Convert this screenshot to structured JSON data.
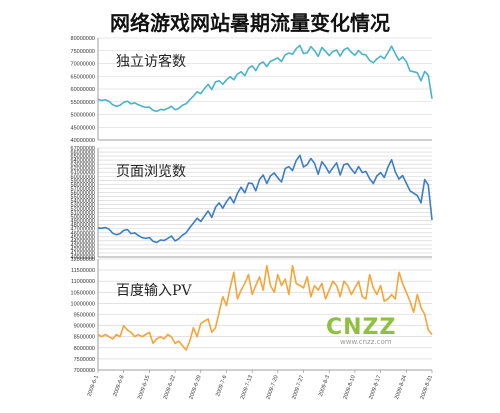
{
  "title": "网络游戏网站暑期流量变化情况",
  "watermark": {
    "main": "CNZZ",
    "sub": "www.cnzz.com"
  },
  "x_ticks": [
    "2009-6-1",
    "2009-6-8",
    "2009-6-15",
    "2009-6-22",
    "2009-6-29",
    "2009-7-6",
    "2009-7-13",
    "2009-7-20",
    "2009-7-27",
    "2009-8-3",
    "2009-8-10",
    "2009-8-17",
    "2009-8-24",
    "2009-8-31"
  ],
  "colors": {
    "panel1": "#4bb3c9",
    "panel2": "#3d7ebf",
    "panel3": "#f7a438",
    "grid": "#d0d0d0",
    "axis": "#888888",
    "watermark": "#8fc13e"
  },
  "chart_data": [
    {
      "type": "line",
      "label": "独立访客数",
      "ylim": [
        40000000,
        80000000
      ],
      "yticks": [
        "40000000",
        "45000000",
        "50000000",
        "55000000",
        "60000000",
        "65000000",
        "70000000",
        "75000000",
        "80000000"
      ],
      "grid": true,
      "x_start": "2009-6-1",
      "x_end": "2009-8-31",
      "values": [
        56000000,
        55500000,
        55800000,
        55200000,
        53800000,
        53200000,
        53600000,
        54800000,
        55200000,
        54200000,
        54600000,
        53800000,
        53200000,
        52800000,
        52900000,
        51600000,
        51200000,
        52000000,
        51800000,
        52400000,
        53200000,
        51900000,
        52400000,
        53600000,
        54200000,
        55800000,
        57200000,
        58900000,
        58200000,
        60100000,
        61800000,
        59800000,
        62800000,
        63200000,
        61900000,
        63600000,
        64800000,
        63600000,
        65900000,
        66800000,
        65200000,
        68100000,
        69100000,
        67200000,
        69800000,
        70600000,
        68800000,
        70900000,
        71500000,
        72200000,
        70800000,
        73400000,
        74100000,
        73600000,
        75800000,
        77100000,
        73900000,
        74200000,
        76600000,
        75100000,
        72800000,
        76300000,
        74800000,
        73100000,
        74700000,
        75300000,
        72900000,
        75400000,
        76100000,
        74400000,
        73200000,
        75100000,
        73600000,
        73400000,
        71200000,
        70300000,
        71800000,
        72900000,
        71900000,
        74300000,
        76800000,
        73800000,
        71300000,
        72600000,
        70800000,
        67100000,
        66800000,
        66400000,
        63200000,
        66900000,
        65400000,
        56200000
      ]
    },
    {
      "type": "line",
      "label": "页面浏览数",
      "ylim": [
        40000000,
        67000000
      ],
      "yticks": [
        "40000000",
        "41000000",
        "42000000",
        "43000000",
        "44000000",
        "45000000",
        "46000000",
        "47000000",
        "48000000",
        "49000000",
        "50000000",
        "51000000",
        "52000000",
        "53000000",
        "54000000",
        "55000000",
        "56000000",
        "57000000",
        "58000000",
        "59000000",
        "60000000",
        "61000000",
        "62000000",
        "63000000",
        "64000000",
        "65000000",
        "66000000",
        "67000000"
      ],
      "grid": true,
      "x_start": "2009-6-1",
      "x_end": "2009-8-31",
      "values": [
        47200000,
        47100000,
        47300000,
        46900000,
        45900000,
        45500000,
        45800000,
        46600000,
        46800000,
        45800000,
        46000000,
        45300000,
        44800000,
        44600000,
        44800000,
        43900000,
        43600000,
        44200000,
        44100000,
        44600000,
        45200000,
        44000000,
        44500000,
        45400000,
        46000000,
        47300000,
        48400000,
        49600000,
        48800000,
        50100000,
        51400000,
        49800000,
        52300000,
        53400000,
        52100000,
        53700000,
        54900000,
        53400000,
        55800000,
        57300000,
        55900000,
        58300000,
        58200000,
        56400000,
        59200000,
        60300000,
        58200000,
        60100000,
        60800000,
        59600000,
        58600000,
        61900000,
        62400000,
        61400000,
        63900000,
        65200000,
        62300000,
        62900000,
        64400000,
        63200000,
        60500000,
        63600000,
        62400000,
        60800000,
        62100000,
        63300000,
        60300000,
        62900000,
        63100000,
        61800000,
        60700000,
        62400000,
        60900000,
        61200000,
        59400000,
        58200000,
        60100000,
        60900000,
        59700000,
        62300000,
        64100000,
        61100000,
        59300000,
        60200000,
        58300000,
        56400000,
        55800000,
        55200000,
        53400000,
        59200000,
        57800000,
        49200000
      ]
    },
    {
      "type": "line",
      "label": "百度输入PV",
      "ylim": [
        7000000,
        12000000
      ],
      "yticks": [
        "7000000",
        "7500000",
        "8000000",
        "8500000",
        "9000000",
        "9500000",
        "10000000",
        "10500000",
        "11000000",
        "11500000",
        "12000000"
      ],
      "grid": true,
      "x_start": "2009-6-1",
      "x_end": "2009-8-31",
      "values": [
        8600000,
        8500000,
        8600000,
        8500000,
        8400000,
        8600000,
        8500000,
        9000000,
        8800000,
        8700000,
        8500000,
        8600000,
        8500000,
        8600000,
        8700000,
        8200000,
        8400000,
        8500000,
        8400000,
        8600000,
        8500000,
        8200000,
        8300000,
        8100000,
        7900000,
        8300000,
        8900000,
        8500000,
        9100000,
        9200000,
        9300000,
        8700000,
        8900000,
        9600000,
        10300000,
        9900000,
        10700000,
        11400000,
        10200000,
        10600000,
        10900000,
        11300000,
        10400000,
        10800000,
        11200000,
        10600000,
        11700000,
        10800000,
        10500000,
        11300000,
        10800000,
        11100000,
        10400000,
        11700000,
        10900000,
        10800000,
        10700000,
        11200000,
        10300000,
        10800000,
        10600000,
        10900000,
        10200000,
        10600000,
        11000000,
        10800000,
        10300000,
        11000000,
        10800000,
        10400000,
        10700000,
        11000000,
        10300000,
        10200000,
        11300000,
        10700000,
        10400000,
        10800000,
        10100000,
        10200000,
        10400000,
        10200000,
        11400000,
        10900000,
        10500000,
        10100000,
        9600000,
        10400000,
        9800000,
        9500000,
        8800000,
        8600000
      ]
    }
  ]
}
